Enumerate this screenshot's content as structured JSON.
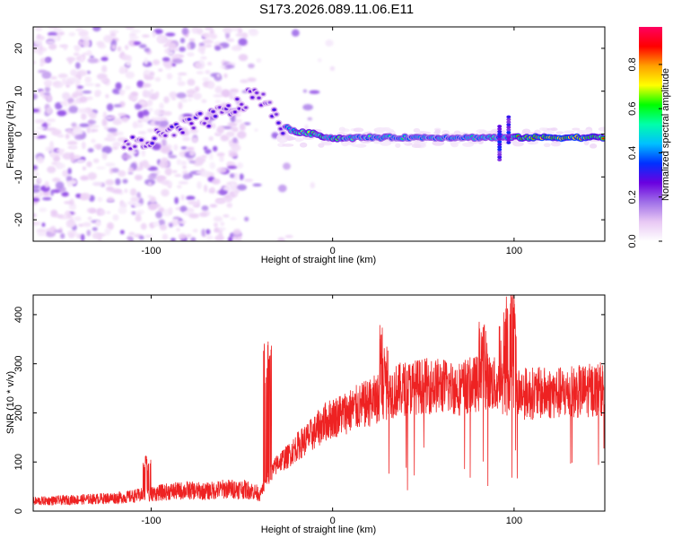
{
  "title": "S173.2026.089.11.06.E11",
  "chart_data": [
    {
      "type": "heatmap",
      "xlabel": "Height of straight line (km)",
      "ylabel": "Frequency (Hz)",
      "xlim": [
        -165,
        150
      ],
      "ylim": [
        -25,
        25
      ],
      "xticks": [
        -100,
        0,
        100
      ],
      "yticks": [
        -20,
        -10,
        0,
        10,
        20
      ],
      "colorbar": {
        "label": "Normalized spectral amplitude",
        "range": [
          0,
          0.97
        ],
        "ticks": [
          0.0,
          0.2,
          0.4,
          0.6,
          0.8
        ],
        "colors": [
          "#ffffff",
          "#e8c8f4",
          "#a070e8",
          "#6a00e0",
          "#0030ff",
          "#00c0ff",
          "#00ffaa",
          "#00ff00",
          "#ffff00",
          "#ffa000",
          "#ff0000",
          "#ff0060"
        ]
      },
      "tone_track": [
        {
          "x": -115,
          "f": -2.5,
          "a": 0.25
        },
        {
          "x": -100,
          "f": -1.5,
          "a": 0.3
        },
        {
          "x": -88,
          "f": 0.5,
          "a": 0.28
        },
        {
          "x": -75,
          "f": 2.5,
          "a": 0.3
        },
        {
          "x": -60,
          "f": 5,
          "a": 0.28
        },
        {
          "x": -50,
          "f": 7,
          "a": 0.3
        },
        {
          "x": -42,
          "f": 10,
          "a": 0.28
        },
        {
          "x": -35,
          "f": 6,
          "a": 0.25
        },
        {
          "x": -28,
          "f": 2,
          "a": 0.35
        },
        {
          "x": -20,
          "f": 0.5,
          "a": 0.75
        },
        {
          "x": -10,
          "f": 0,
          "a": 0.8
        },
        {
          "x": 0,
          "f": -1,
          "a": 0.75
        },
        {
          "x": 20,
          "f": -0.8,
          "a": 0.6
        },
        {
          "x": 50,
          "f": -0.8,
          "a": 0.55
        },
        {
          "x": 88,
          "f": -0.8,
          "a": 0.6
        },
        {
          "x": 96,
          "f": -0.8,
          "a": 0.7
        },
        {
          "x": 110,
          "f": -0.8,
          "a": 0.95
        },
        {
          "x": 150,
          "f": -0.8,
          "a": 0.95
        }
      ]
    },
    {
      "type": "line",
      "xlabel": "Height of straight line (km)",
      "ylabel": "SNR (10 * v/v)",
      "xlim": [
        -165,
        150
      ],
      "ylim": [
        0,
        440
      ],
      "xticks": [
        -100,
        0,
        100
      ],
      "yticks": [
        0,
        100,
        200,
        300,
        400
      ],
      "series": [
        {
          "name": "SNR",
          "color": "#ee2222",
          "x": [
            -165,
            -150,
            -130,
            -115,
            -100,
            -90,
            -80,
            -70,
            -60,
            -50,
            -45,
            -40,
            -35,
            -30,
            -25,
            -20,
            -15,
            -10,
            -5,
            0,
            10,
            20,
            30,
            40,
            50,
            60,
            70,
            80,
            85,
            90,
            95,
            100,
            105,
            110,
            120,
            130,
            140,
            150
          ],
          "values": [
            20,
            22,
            25,
            28,
            35,
            40,
            42,
            40,
            45,
            45,
            42,
            35,
            70,
            100,
            110,
            130,
            145,
            160,
            180,
            190,
            205,
            220,
            240,
            250,
            255,
            255,
            250,
            260,
            265,
            255,
            250,
            245,
            240,
            240,
            240,
            240,
            245,
            250
          ]
        }
      ],
      "features": [
        {
          "x": -102,
          "peak": 110
        },
        {
          "x": -36,
          "peak": 330
        },
        {
          "x": 28,
          "peak": 370
        },
        {
          "x": 83,
          "peak": 370
        },
        {
          "x": 94,
          "peak": 440
        },
        {
          "x": 99,
          "peak": 430
        }
      ]
    }
  ]
}
